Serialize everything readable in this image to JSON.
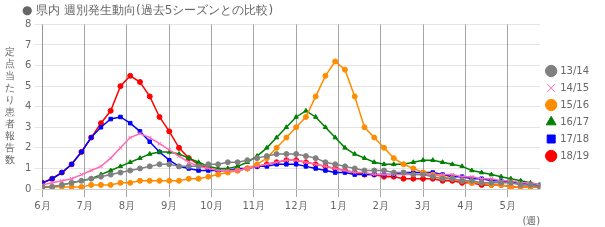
{
  "chart_data": {
    "type": "line",
    "title": "● 県内 週別発生動向(過去5シーズンとの比較)",
    "ylabel": "定\n点\n当\nた\nり\n患\n者\n報\n告\n数",
    "xlabel": "(週)",
    "x": [
      0,
      1,
      2,
      3,
      4,
      5,
      6,
      7,
      8,
      9,
      10,
      11,
      12,
      13,
      14,
      15,
      16,
      17,
      18,
      19,
      20,
      21,
      22,
      23,
      24,
      25,
      26,
      27,
      28,
      29,
      30,
      31,
      32,
      33,
      34,
      35,
      36,
      37,
      38,
      39,
      40,
      41,
      42,
      43,
      44,
      45,
      46,
      47,
      48,
      49,
      50,
      51
    ],
    "xlim": [
      0,
      51
    ],
    "xticks": [
      {
        "value": 0,
        "label": "6月"
      },
      {
        "value": 4.333333333333333,
        "label": "7月"
      },
      {
        "value": 8.666666666666666,
        "label": "8月"
      },
      {
        "value": 13,
        "label": "9月"
      },
      {
        "value": 17.333333333333332,
        "label": "10月"
      },
      {
        "value": 21.666666666666664,
        "label": "11月"
      },
      {
        "value": 26,
        "label": "12月"
      },
      {
        "value": 30.333333333333332,
        "label": "1月"
      },
      {
        "value": 34.666666666666664,
        "label": "2月"
      },
      {
        "value": 39,
        "label": "3月"
      },
      {
        "value": 43.33333333333333,
        "label": "4月"
      },
      {
        "value": 47.666666666666664,
        "label": "5月"
      }
    ],
    "ylim": [
      0,
      8
    ],
    "yticks": [
      0,
      1,
      2,
      3,
      4,
      5,
      6,
      7,
      8
    ],
    "grid": true,
    "legend": "right",
    "series": [
      {
        "name": "13/14",
        "color": "#808080",
        "marker": "circle",
        "values": [
          0.1,
          0.1,
          0.2,
          0.3,
          0.4,
          0.5,
          0.6,
          0.7,
          0.8,
          0.9,
          1.0,
          1.1,
          1.2,
          1.2,
          1.1,
          1.1,
          1.1,
          1.2,
          1.2,
          1.3,
          1.3,
          1.4,
          1.5,
          1.6,
          1.7,
          1.7,
          1.7,
          1.6,
          1.5,
          1.3,
          1.2,
          1.1,
          1.0,
          0.9,
          0.9,
          0.9,
          0.8,
          0.8,
          0.7,
          0.7,
          0.6,
          0.5,
          0.5,
          0.4,
          0.4,
          0.3,
          0.3,
          0.3,
          0.3,
          0.2,
          0.2,
          0.1
        ]
      },
      {
        "name": "14/15",
        "color": "#ff69b4",
        "marker": "x",
        "values": [
          0.2,
          0.3,
          0.4,
          0.5,
          0.7,
          0.9,
          1.1,
          1.5,
          2.0,
          2.5,
          2.7,
          2.5,
          2.2,
          1.9,
          1.6,
          1.3,
          1.1,
          1.0,
          0.9,
          0.9,
          0.9,
          1.0,
          1.1,
          1.2,
          1.3,
          1.4,
          1.4,
          1.3,
          1.2,
          1.1,
          1.0,
          0.9,
          0.8,
          0.8,
          0.7,
          0.7,
          0.7,
          0.7,
          0.7,
          0.7,
          0.7,
          0.7,
          0.7,
          0.6,
          0.6,
          0.5,
          0.5,
          0.4,
          0.4,
          0.3,
          0.3,
          0.2
        ]
      },
      {
        "name": "15/16",
        "color": "#ff8c00",
        "marker": "circle",
        "values": [
          0.1,
          0.1,
          0.1,
          0.1,
          0.1,
          0.2,
          0.2,
          0.2,
          0.3,
          0.3,
          0.4,
          0.4,
          0.4,
          0.4,
          0.4,
          0.5,
          0.5,
          0.6,
          0.7,
          0.8,
          0.9,
          1.0,
          1.2,
          1.5,
          2.0,
          2.5,
          3.0,
          3.5,
          4.5,
          5.5,
          6.2,
          5.8,
          4.5,
          3.0,
          2.5,
          2.0,
          1.5,
          1.2,
          1.0,
          0.8,
          0.7,
          0.6,
          0.5,
          0.4,
          0.3,
          0.3,
          0.2,
          0.2,
          0.1,
          0.1,
          0.1,
          0.1
        ]
      },
      {
        "name": "16/17",
        "color": "#008000",
        "marker": "triangle",
        "values": [
          0.1,
          0.1,
          0.2,
          0.3,
          0.4,
          0.5,
          0.7,
          0.9,
          1.1,
          1.3,
          1.5,
          1.7,
          1.8,
          1.8,
          1.7,
          1.5,
          1.3,
          1.1,
          1.0,
          1.0,
          1.1,
          1.3,
          1.6,
          2.0,
          2.5,
          3.0,
          3.5,
          3.8,
          3.5,
          3.0,
          2.5,
          2.0,
          1.7,
          1.5,
          1.3,
          1.2,
          1.2,
          1.2,
          1.3,
          1.4,
          1.4,
          1.3,
          1.2,
          1.1,
          0.9,
          0.8,
          0.7,
          0.6,
          0.5,
          0.4,
          0.3,
          0.2
        ]
      },
      {
        "name": "17/18",
        "color": "#0000ff",
        "marker": "square",
        "values": [
          0.3,
          0.5,
          0.8,
          1.2,
          1.8,
          2.5,
          3.0,
          3.4,
          3.5,
          3.2,
          2.8,
          2.3,
          1.8,
          1.4,
          1.1,
          1.0,
          0.9,
          0.9,
          0.9,
          0.9,
          1.0,
          1.0,
          1.1,
          1.1,
          1.2,
          1.2,
          1.2,
          1.1,
          1.0,
          0.9,
          0.8,
          0.8,
          0.7,
          0.7,
          0.7,
          0.7,
          0.7,
          0.8,
          0.8,
          0.8,
          0.8,
          0.7,
          0.6,
          0.6,
          0.5,
          0.5,
          0.4,
          0.4,
          0.3,
          0.3,
          0.2,
          0.2
        ]
      },
      {
        "name": "18/19",
        "color": "#ff0000",
        "marker": "circle",
        "values": [
          0.3,
          0.5,
          0.8,
          1.2,
          1.8,
          2.5,
          3.2,
          3.8,
          5.0,
          5.5,
          5.2,
          4.5,
          3.5,
          2.8,
          2.0,
          1.5,
          1.2,
          1.0,
          0.9,
          0.9,
          0.9,
          1.0,
          1.1,
          1.2,
          1.3,
          1.4,
          1.4,
          1.3,
          1.2,
          1.1,
          1.0,
          0.9,
          0.8,
          0.7,
          0.7,
          0.6,
          0.6,
          0.5,
          0.5,
          0.5,
          0.5,
          0.4,
          0.4,
          0.3,
          0.3,
          0.2,
          0.2,
          0.2,
          0.1,
          0.1,
          0.1,
          0.1
        ]
      }
    ]
  }
}
